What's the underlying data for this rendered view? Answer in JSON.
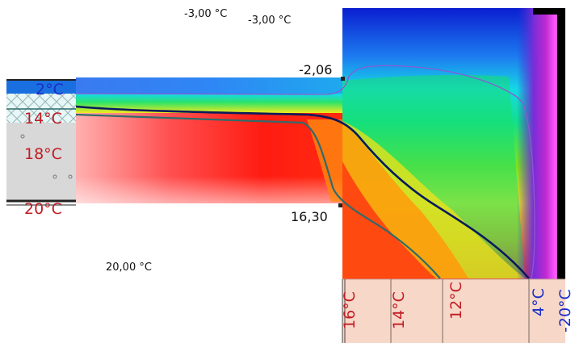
{
  "boundary_labels": {
    "outside_a": "-3,00 °C",
    "outside_b": "-3,00 °C",
    "inside": "20,00 °C"
  },
  "point_values": {
    "upper_corner": "-2,06",
    "lower_corner": "16,30"
  },
  "left_isotherm_labels": [
    "2°C",
    "14°C",
    "18°C",
    "20°C"
  ],
  "bottom_isotherm_labels": [
    "16°C",
    "14°C",
    "12°C",
    "4°C",
    "-20°C"
  ],
  "colors": {
    "cold_label": "#1a2ec8",
    "warm_label": "#c21c24",
    "isotherm_dark": "#0a1a5c",
    "isotherm_teal": "#2f6b6b",
    "isotherm_violet": "#8a5ad0",
    "wall_fill": "#d8d8d8",
    "insulation_fill": "#c9ecec",
    "floor_strip": "#f7d7c8"
  }
}
